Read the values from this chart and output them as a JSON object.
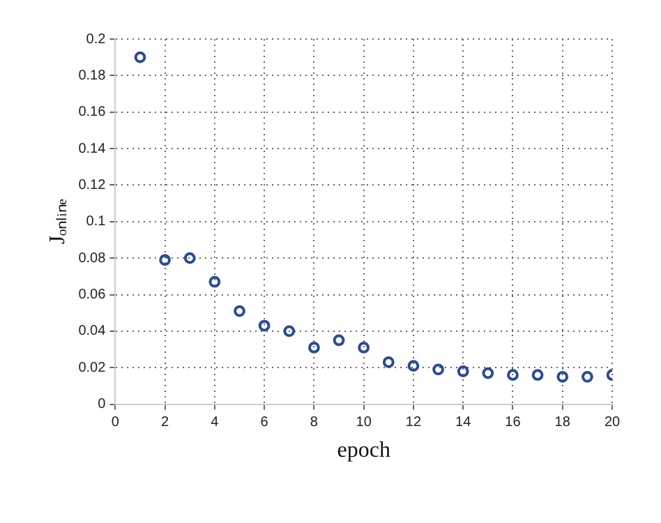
{
  "chart_data": {
    "type": "scatter",
    "xlabel": "epoch",
    "ylabel": "Jₒₙₗᵢₙₑ",
    "x": [
      1,
      2,
      3,
      4,
      5,
      6,
      7,
      8,
      9,
      10,
      11,
      12,
      13,
      14,
      15,
      16,
      17,
      18,
      19,
      20
    ],
    "series": [
      {
        "color": "#2b4a9a",
        "values": [
          0.19,
          0.079,
          0.08,
          0.067,
          0.051,
          0.043,
          0.04,
          0.031,
          0.035,
          0.031,
          0.023,
          0.021,
          0.019,
          0.018,
          0.017,
          0.016,
          0.016,
          0.015,
          0.015,
          0.016
        ]
      }
    ],
    "xlim": [
      0,
      20
    ],
    "xticks": [
      0,
      2,
      4,
      6,
      8,
      10,
      12,
      14,
      16,
      18,
      20
    ],
    "ylim": [
      0,
      0.2
    ],
    "yticks": [
      0,
      0.02,
      0.04,
      0.06,
      0.08,
      0.1,
      0.12,
      0.14,
      0.16,
      0.18,
      0.2
    ],
    "grid": true,
    "line_style": "dotted",
    "marker": "circle",
    "legend": false
  }
}
